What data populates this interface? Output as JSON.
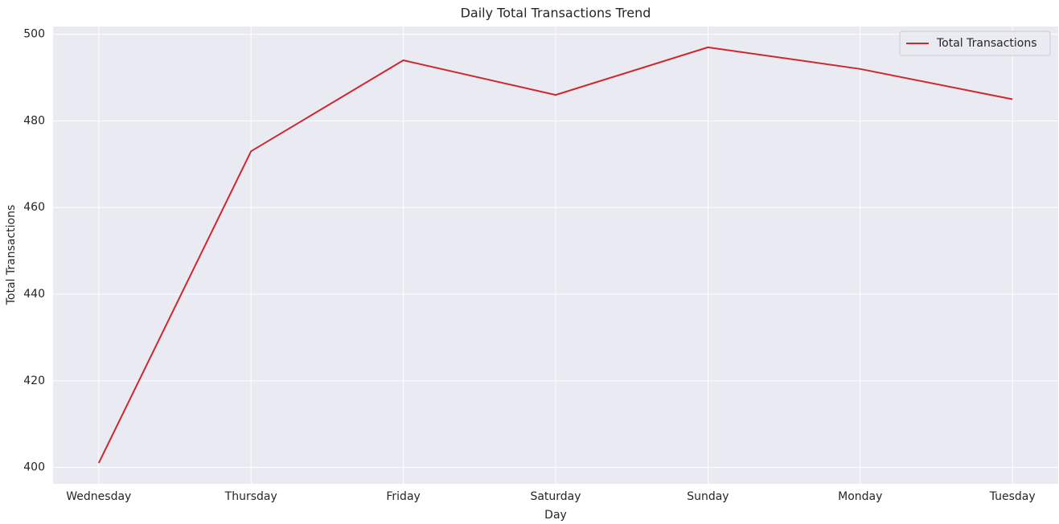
{
  "chart_data": {
    "type": "line",
    "title": "Daily Total Transactions Trend",
    "x_label": "Day",
    "y_label": "Total Transactions",
    "categories": [
      "Wednesday",
      "Thursday",
      "Friday",
      "Saturday",
      "Sunday",
      "Monday",
      "Tuesday"
    ],
    "series": [
      {
        "name": "Total Transactions",
        "color": "#d0262e",
        "values": [
          401,
          473,
          494,
          486,
          497,
          492,
          485
        ]
      }
    ],
    "ylim": [
      396.2,
      501.8
    ],
    "yticks": [
      400,
      420,
      440,
      460,
      480,
      500
    ],
    "grid": true,
    "legend": "upper right"
  }
}
